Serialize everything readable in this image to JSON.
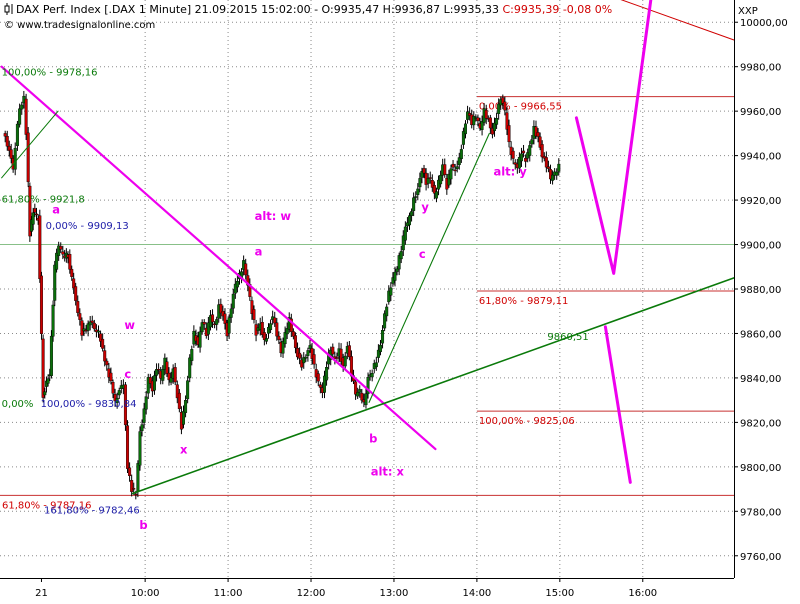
{
  "header": {
    "symbol_icon": "candlestick-icon",
    "main_text": "DAX Perf. Index [.DAX  1 Minute] 21.09.2015 15:02:00 - O:9935,47 H:9936,87 L:9935,33",
    "close_text": "C:9935,39 -0,08 0%",
    "close_color": "#d00000",
    "site_text": "© www.tradesignalonline.com",
    "right_label": "XXP"
  },
  "chart_data": {
    "type": "candlestick",
    "title": "DAX Perf. Index [.DAX  1 Minute]",
    "ylim": [
      9750,
      10010
    ],
    "y_ticks": [
      9760,
      9780,
      9800,
      9820,
      9840,
      9860,
      9880,
      9900,
      9920,
      9940,
      9960,
      9980,
      10000
    ],
    "y_tick_labels": [
      "9760,00",
      "9780,00",
      "9800,00",
      "9820,00",
      "9840,00",
      "9860,00",
      "9880,00",
      "9900,00",
      "9920,00",
      "9940,00",
      "9960,00",
      "9980,00",
      "10000,00"
    ],
    "x_labels": [
      "21",
      "10:00",
      "11:00",
      "12:00",
      "13:00",
      "14:00",
      "15:00",
      "16:00"
    ],
    "x_label_hours": [
      8.75,
      10,
      11,
      12,
      13,
      14,
      15,
      16
    ],
    "x_range_hours": [
      8.25,
      17.1
    ],
    "grid": true,
    "colors": {
      "up": "#0a6f0a",
      "down": "#c80000",
      "wick": "#000000",
      "magenta": "#ee00ee",
      "green": "#0a7a0a",
      "red": "#d00000",
      "blue": "#1c1ca8",
      "ref_line": "#c83030"
    },
    "price_path": [
      [
        8.3,
        9950
      ],
      [
        8.35,
        9945
      ],
      [
        8.42,
        9935
      ],
      [
        8.5,
        9962
      ],
      [
        8.55,
        9966
      ],
      [
        8.58,
        9950
      ],
      [
        8.62,
        9905
      ],
      [
        8.66,
        9915
      ],
      [
        8.72,
        9912
      ],
      [
        8.78,
        9832
      ],
      [
        8.82,
        9838
      ],
      [
        8.86,
        9842
      ],
      [
        8.92,
        9890
      ],
      [
        8.97,
        9900
      ],
      [
        9.02,
        9895
      ],
      [
        9.08,
        9895
      ],
      [
        9.15,
        9880
      ],
      [
        9.25,
        9860
      ],
      [
        9.35,
        9865
      ],
      [
        9.45,
        9860
      ],
      [
        9.55,
        9845
      ],
      [
        9.65,
        9830
      ],
      [
        9.75,
        9838
      ],
      [
        9.8,
        9800
      ],
      [
        9.85,
        9790
      ],
      [
        9.9,
        9788
      ],
      [
        9.95,
        9815
      ],
      [
        10.0,
        9825
      ],
      [
        10.05,
        9840
      ],
      [
        10.1,
        9835
      ],
      [
        10.15,
        9845
      ],
      [
        10.2,
        9840
      ],
      [
        10.25,
        9848
      ],
      [
        10.3,
        9838
      ],
      [
        10.35,
        9844
      ],
      [
        10.4,
        9832
      ],
      [
        10.45,
        9818
      ],
      [
        10.5,
        9830
      ],
      [
        10.55,
        9848
      ],
      [
        10.6,
        9860
      ],
      [
        10.65,
        9855
      ],
      [
        10.7,
        9866
      ],
      [
        10.75,
        9860
      ],
      [
        10.8,
        9868
      ],
      [
        10.85,
        9863
      ],
      [
        10.9,
        9872
      ],
      [
        10.95,
        9868
      ],
      [
        11.0,
        9860
      ],
      [
        11.05,
        9872
      ],
      [
        11.1,
        9882
      ],
      [
        11.15,
        9886
      ],
      [
        11.2,
        9892
      ],
      [
        11.25,
        9882
      ],
      [
        11.3,
        9870
      ],
      [
        11.35,
        9860
      ],
      [
        11.4,
        9864
      ],
      [
        11.45,
        9856
      ],
      [
        11.5,
        9862
      ],
      [
        11.55,
        9868
      ],
      [
        11.6,
        9860
      ],
      [
        11.65,
        9852
      ],
      [
        11.7,
        9860
      ],
      [
        11.75,
        9866
      ],
      [
        11.8,
        9858
      ],
      [
        11.85,
        9850
      ],
      [
        11.9,
        9846
      ],
      [
        11.95,
        9850
      ],
      [
        12.0,
        9854
      ],
      [
        12.05,
        9845
      ],
      [
        12.1,
        9838
      ],
      [
        12.15,
        9834
      ],
      [
        12.2,
        9846
      ],
      [
        12.25,
        9853
      ],
      [
        12.3,
        9848
      ],
      [
        12.35,
        9852
      ],
      [
        12.4,
        9845
      ],
      [
        12.45,
        9855
      ],
      [
        12.5,
        9842
      ],
      [
        12.55,
        9833
      ],
      [
        12.6,
        9834
      ],
      [
        12.65,
        9828
      ],
      [
        12.7,
        9840
      ],
      [
        12.75,
        9843
      ],
      [
        12.8,
        9848
      ],
      [
        12.85,
        9855
      ],
      [
        12.9,
        9868
      ],
      [
        12.95,
        9878
      ],
      [
        13.0,
        9885
      ],
      [
        13.05,
        9890
      ],
      [
        13.1,
        9898
      ],
      [
        13.15,
        9908
      ],
      [
        13.2,
        9912
      ],
      [
        13.25,
        9920
      ],
      [
        13.3,
        9925
      ],
      [
        13.35,
        9934
      ],
      [
        13.4,
        9928
      ],
      [
        13.45,
        9930
      ],
      [
        13.5,
        9922
      ],
      [
        13.55,
        9928
      ],
      [
        13.6,
        9936
      ],
      [
        13.65,
        9926
      ],
      [
        13.7,
        9935
      ],
      [
        13.75,
        9933
      ],
      [
        13.8,
        9938
      ],
      [
        13.85,
        9950
      ],
      [
        13.9,
        9960
      ],
      [
        13.95,
        9955
      ],
      [
        14.0,
        9958
      ],
      [
        14.05,
        9952
      ],
      [
        14.1,
        9960
      ],
      [
        14.15,
        9956
      ],
      [
        14.2,
        9950
      ],
      [
        14.25,
        9958
      ],
      [
        14.3,
        9966
      ],
      [
        14.35,
        9960
      ],
      [
        14.4,
        9945
      ],
      [
        14.45,
        9938
      ],
      [
        14.5,
        9935
      ],
      [
        14.55,
        9942
      ],
      [
        14.6,
        9938
      ],
      [
        14.65,
        9944
      ],
      [
        14.7,
        9952
      ],
      [
        14.75,
        9948
      ],
      [
        14.8,
        9940
      ],
      [
        14.85,
        9936
      ],
      [
        14.9,
        9930
      ],
      [
        14.95,
        9932
      ],
      [
        15.0,
        9935
      ]
    ],
    "reference_lines": [
      {
        "y": 9966.55,
        "x_from": 14.0,
        "label": "0,00% - 9966,55",
        "color": "red"
      },
      {
        "y": 9879.11,
        "x_from": 14.0,
        "label": "61,80% - 9879,11",
        "color": "red"
      },
      {
        "y": 9825.06,
        "x_from": 14.0,
        "label": "100,00% - 9825,06",
        "color": "red"
      },
      {
        "y": 9787.16,
        "x_from": 8.25,
        "label": "61,80% - 9787,16",
        "color": "red"
      },
      {
        "y": 9900.0,
        "x_from": 8.25,
        "label": "",
        "color": "gridlike"
      }
    ],
    "price_labels": [
      {
        "text": "100,00% - 9978,16",
        "x": 8.27,
        "y": 9976,
        "color": "green"
      },
      {
        "text": "61,80% - 9921,8",
        "x": 8.27,
        "y": 9919,
        "color": "green"
      },
      {
        "text": "0,00% - 9909,13",
        "x": 8.8,
        "y": 9907,
        "color": "blue"
      },
      {
        "text": "0,00%",
        "x": 8.27,
        "y": 9827,
        "color": "green"
      },
      {
        "text": "100,00% - 9830,84",
        "x": 8.74,
        "y": 9827,
        "color": "blue"
      },
      {
        "text": "161,80% - 9782,46",
        "x": 8.78,
        "y": 9779,
        "color": "blue"
      },
      {
        "text": "9860,51",
        "x": 14.85,
        "y": 9857,
        "color": "green"
      }
    ],
    "trendlines": [
      {
        "from": [
          8.27,
          9980
        ],
        "to": [
          13.5,
          9808
        ],
        "color": "magenta",
        "width": 2.2
      },
      {
        "from": [
          9.85,
          9788
        ],
        "to": [
          17.1,
          9885
        ],
        "color": "green",
        "width": 1.6
      },
      {
        "from": [
          12.7,
          9829
        ],
        "to": [
          14.15,
          9950
        ],
        "color": "green",
        "width": 1.1
      },
      {
        "from": [
          8.27,
          9930
        ],
        "to": [
          8.95,
          9960
        ],
        "color": "green",
        "width": 1.0
      },
      {
        "from": [
          15.0,
          10020
        ],
        "to": [
          17.1,
          9992
        ],
        "color": "red",
        "width": 1.0
      }
    ],
    "forecast_paths": [
      {
        "points": [
          [
            15.2,
            9957
          ],
          [
            15.65,
            9887
          ],
          [
            16.1,
            10011
          ]
        ],
        "color": "magenta",
        "width": 3
      },
      {
        "points": [
          [
            15.55,
            9863
          ],
          [
            15.85,
            9793
          ]
        ],
        "color": "magenta",
        "width": 3
      }
    ],
    "wave_labels": [
      {
        "text": "a",
        "x": 8.88,
        "y": 9914
      },
      {
        "text": "w",
        "x": 9.75,
        "y": 9862
      },
      {
        "text": "c",
        "x": 9.75,
        "y": 9840
      },
      {
        "text": "x",
        "x": 10.42,
        "y": 9806
      },
      {
        "text": "b",
        "x": 9.93,
        "y": 9772
      },
      {
        "text": "alt: w",
        "x": 11.32,
        "y": 9911
      },
      {
        "text": "a",
        "x": 11.32,
        "y": 9895
      },
      {
        "text": "b",
        "x": 12.7,
        "y": 9811
      },
      {
        "text": "alt: x",
        "x": 12.72,
        "y": 9796
      },
      {
        "text": "y",
        "x": 13.33,
        "y": 9915
      },
      {
        "text": "c",
        "x": 13.3,
        "y": 9894
      },
      {
        "text": "alt: y",
        "x": 14.2,
        "y": 9931
      }
    ]
  }
}
